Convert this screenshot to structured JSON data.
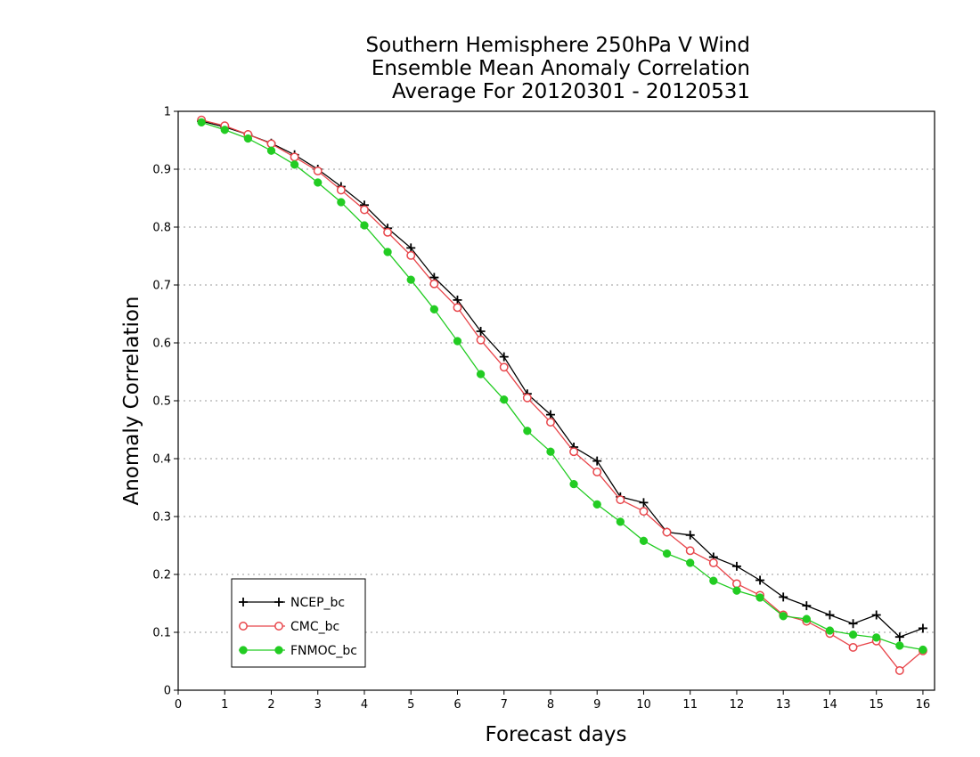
{
  "chart_data": {
    "type": "line",
    "title": [
      "Southern Hemisphere 250hPa V Wind",
      "Ensemble Mean Anomaly Correlation",
      "Average For 20120301 - 20120531"
    ],
    "xlabel": "Forecast days",
    "ylabel": "Anomaly Correlation",
    "xlim": [
      0,
      16.25
    ],
    "ylim": [
      0,
      1
    ],
    "xticks": [
      0,
      1,
      2,
      3,
      4,
      5,
      6,
      7,
      8,
      9,
      10,
      11,
      12,
      13,
      14,
      15,
      16
    ],
    "yticks": [
      0,
      0.1,
      0.2,
      0.3,
      0.4,
      0.5,
      0.6,
      0.7,
      0.8,
      0.9,
      1
    ],
    "ytick_labels": [
      "0",
      "0.1",
      "0.2",
      "0.3",
      "0.4",
      "0.5",
      "0.6",
      "0.7",
      "0.8",
      "0.9",
      "1"
    ],
    "grid": "horizontal-dotted",
    "legend_position": "bottom-left",
    "x": [
      0.5,
      1,
      1.5,
      2,
      2.5,
      3,
      3.5,
      4,
      4.5,
      5,
      5.5,
      6,
      6.5,
      7,
      7.5,
      8,
      8.5,
      9,
      9.5,
      10,
      10.5,
      11,
      11.5,
      12,
      12.5,
      13,
      13.5,
      14,
      14.5,
      15,
      15.5,
      16
    ],
    "series": [
      {
        "name": "NCEP_bc",
        "color": "#000000",
        "marker": "plus",
        "values": [
          0.983,
          0.973,
          0.96,
          0.945,
          0.925,
          0.9,
          0.87,
          0.838,
          0.798,
          0.764,
          0.713,
          0.674,
          0.62,
          0.576,
          0.512,
          0.476,
          0.42,
          0.396,
          0.334,
          0.324,
          0.273,
          0.268,
          0.23,
          0.214,
          0.19,
          0.161,
          0.146,
          0.13,
          0.115,
          0.13,
          0.092,
          0.107
        ]
      },
      {
        "name": "CMC_bc",
        "color": "#e8464b",
        "marker": "open-circle",
        "values": [
          0.985,
          0.975,
          0.96,
          0.944,
          0.921,
          0.897,
          0.864,
          0.83,
          0.791,
          0.751,
          0.702,
          0.661,
          0.605,
          0.558,
          0.505,
          0.463,
          0.412,
          0.377,
          0.329,
          0.309,
          0.273,
          0.241,
          0.22,
          0.184,
          0.164,
          0.13,
          0.119,
          0.098,
          0.074,
          0.085,
          0.034,
          0.068
        ]
      },
      {
        "name": "FNMOC_bc",
        "color": "#22cc22",
        "marker": "filled-circle",
        "values": [
          0.981,
          0.968,
          0.953,
          0.932,
          0.908,
          0.877,
          0.843,
          0.803,
          0.757,
          0.709,
          0.658,
          0.603,
          0.546,
          0.502,
          0.448,
          0.412,
          0.356,
          0.321,
          0.291,
          0.258,
          0.236,
          0.22,
          0.189,
          0.172,
          0.16,
          0.128,
          0.123,
          0.103,
          0.096,
          0.091,
          0.077,
          0.07
        ]
      }
    ]
  }
}
